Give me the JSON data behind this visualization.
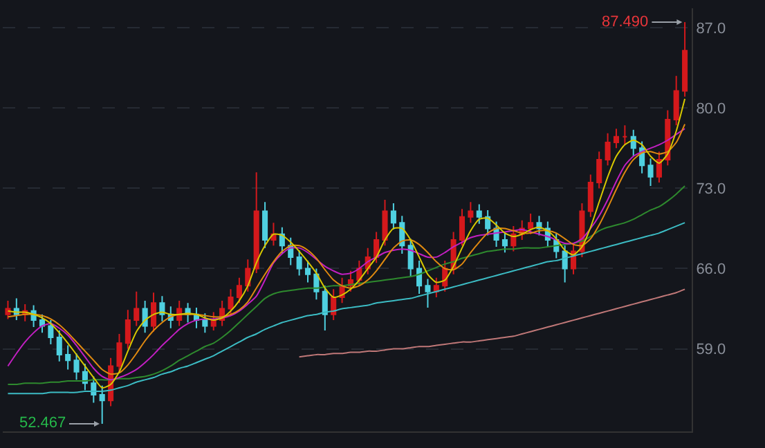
{
  "chart_data": {
    "type": "candlestick",
    "categories": [
      null,
      null,
      null,
      null,
      null,
      null,
      null,
      null,
      null,
      null,
      null,
      null,
      null,
      null,
      null,
      null,
      null,
      null,
      null,
      null,
      null,
      null,
      null,
      null,
      null,
      null,
      null,
      null,
      null,
      null,
      null,
      null,
      null,
      null,
      null,
      null,
      null,
      null,
      null,
      null,
      null,
      null,
      null,
      null,
      null,
      null,
      null,
      null,
      null,
      null,
      null,
      null,
      null,
      null,
      null,
      null,
      null,
      null,
      null,
      null,
      null,
      null,
      null,
      null,
      null,
      null,
      null,
      null,
      null,
      null,
      null,
      null,
      null,
      null,
      null,
      null,
      null,
      null,
      null,
      null
    ],
    "ylim": [
      51.8,
      88.7
    ],
    "yticks": [
      {
        "value": 59,
        "label": "59.0"
      },
      {
        "value": 66,
        "label": "66.0"
      },
      {
        "value": 73,
        "label": "73.0"
      },
      {
        "value": 80,
        "label": "80.0"
      },
      {
        "value": 87,
        "label": "87.0"
      }
    ],
    "grid": "y",
    "tick_labels": "y",
    "annotations": [
      "52.467",
      "87.490"
    ],
    "series": [
      {
        "colors": [
          "#d4191c",
          "#4fd0e0",
          "#d4191c",
          "#4fd0e0",
          "#4fd0e0",
          "#4fd0e0",
          "#4fd0e0",
          "#4fd0e0",
          "#4fd0e0",
          "#4fd0e0",
          "#4fd0e0",
          "#4fd0e0",
          "#d4191c",
          "#d4191c",
          "#d4191c",
          "#d4191c",
          "#4fd0e0",
          "#d4191c",
          "#4fd0e0",
          "#4fd0e0",
          "#d4191c",
          "#4fd0e0",
          "#4fd0e0",
          "#4fd0e0",
          "#d4191c",
          "#d4191c",
          "#d4191c",
          "#d4191c",
          "#d4191c",
          "#d4191c",
          "#4fd0e0",
          "#d4191c",
          "#4fd0e0",
          "#4fd0e0",
          "#4fd0e0",
          "#4fd0e0",
          "#4fd0e0",
          "#4fd0e0",
          "#d4191c",
          "#d4191c",
          "#d4191c",
          "#d4191c",
          "#d4191c",
          "#d4191c",
          "#d4191c",
          "#4fd0e0",
          "#4fd0e0",
          "#4fd0e0",
          "#4fd0e0",
          "#4fd0e0",
          "#d4191c",
          "#d4191c",
          "#d4191c",
          "#d4191c",
          "#d4191c",
          "#4fd0e0",
          "#4fd0e0",
          "#4fd0e0",
          "#4fd0e0",
          "#d4191c",
          "#d4191c",
          "#d4191c",
          "#4fd0e0",
          "#4fd0e0",
          "#4fd0e0",
          "#4fd0e0",
          "#d4191c",
          "#d4191c",
          "#d4191c",
          "#d4191c",
          "#d4191c",
          "#d4191c",
          "#d4191c",
          "#4fd0e0",
          "#4fd0e0",
          "#4fd0e0",
          "#d4191c",
          "#d4191c",
          "#d4191c",
          "#d4191c"
        ],
        "ohlc": [
          [
            62,
            63.2,
            61.6,
            62.5
          ],
          [
            62.5,
            63.4,
            61.5,
            62
          ],
          [
            62,
            62.9,
            61.4,
            62.3
          ],
          [
            62.3,
            62.8,
            60.9,
            61.5
          ],
          [
            61.5,
            62,
            60.4,
            61
          ],
          [
            61,
            61.5,
            59.4,
            60
          ],
          [
            60,
            60.6,
            57.9,
            58.5
          ],
          [
            58.5,
            59.3,
            57.2,
            58
          ],
          [
            58,
            58.6,
            56.3,
            57
          ],
          [
            57,
            57.7,
            55.4,
            56
          ],
          [
            56,
            56.6,
            54.3,
            55
          ],
          [
            55,
            55.8,
            52.467,
            54.5
          ],
          [
            54.5,
            58.2,
            54,
            57.5
          ],
          [
            57.5,
            60.3,
            57,
            59.5
          ],
          [
            59.5,
            62.4,
            59,
            61.5
          ],
          [
            61.5,
            64,
            61,
            62.5
          ],
          [
            62.5,
            63.2,
            60.4,
            61
          ],
          [
            61,
            63.9,
            60.5,
            63
          ],
          [
            63,
            63.6,
            61.4,
            62
          ],
          [
            62,
            62.7,
            60.8,
            61.5
          ],
          [
            61.5,
            63.2,
            61,
            62.5
          ],
          [
            62.5,
            63,
            61.3,
            62
          ],
          [
            62,
            62.6,
            60.8,
            61.5
          ],
          [
            61.5,
            62.1,
            60.4,
            61
          ],
          [
            61,
            62.2,
            60.6,
            61.5
          ],
          [
            61.5,
            63.2,
            61,
            62.5
          ],
          [
            62.5,
            64.2,
            62,
            63.5
          ],
          [
            63.5,
            65.2,
            63,
            64.5
          ],
          [
            64.5,
            66.8,
            64,
            66
          ],
          [
            66,
            74.4,
            65.6,
            71
          ],
          [
            71,
            71.8,
            67.8,
            68.5
          ],
          [
            68.5,
            70,
            68,
            69
          ],
          [
            69,
            69.6,
            67.3,
            68
          ],
          [
            68,
            68.7,
            66.3,
            67
          ],
          [
            67,
            67.6,
            65.4,
            66
          ],
          [
            66,
            66.7,
            64.8,
            65.5
          ],
          [
            65.5,
            66,
            63.3,
            64
          ],
          [
            64,
            64.5,
            60.6,
            62
          ],
          [
            62,
            64.2,
            61.5,
            63.5
          ],
          [
            63.5,
            65.2,
            63,
            64.5
          ],
          [
            64.5,
            65.8,
            64,
            65
          ],
          [
            65,
            66.7,
            64.5,
            66
          ],
          [
            66,
            67.8,
            65.5,
            67
          ],
          [
            67,
            69.2,
            66.5,
            68.5
          ],
          [
            68.5,
            72,
            68,
            71
          ],
          [
            71,
            71.7,
            69.4,
            70
          ],
          [
            70,
            70.6,
            67.3,
            68
          ],
          [
            68,
            68.6,
            65.3,
            66
          ],
          [
            66,
            66.7,
            63.8,
            64.5
          ],
          [
            64.5,
            65.1,
            62.6,
            64
          ],
          [
            64,
            65.2,
            63.5,
            64.5
          ],
          [
            64.5,
            66.7,
            64,
            66
          ],
          [
            66,
            69.2,
            65.5,
            68.5
          ],
          [
            68.5,
            71.2,
            68,
            70.5
          ],
          [
            70.5,
            71.8,
            70,
            71
          ],
          [
            71,
            71.6,
            69.9,
            70.5
          ],
          [
            70.5,
            71.1,
            68.9,
            69.5
          ],
          [
            69.5,
            70.1,
            67.9,
            68.5
          ],
          [
            68.5,
            69.1,
            67.4,
            68
          ],
          [
            68,
            69.7,
            67.5,
            69
          ],
          [
            69,
            70.2,
            68.5,
            69.5
          ],
          [
            69.5,
            70.8,
            69,
            70
          ],
          [
            70,
            70.6,
            68.9,
            69.5
          ],
          [
            69.5,
            70.1,
            67.9,
            68.5
          ],
          [
            68.5,
            69.1,
            66.9,
            67.5
          ],
          [
            67.5,
            68,
            64.8,
            66
          ],
          [
            66,
            68.2,
            65.5,
            67.5
          ],
          [
            67.5,
            71.7,
            67,
            71
          ],
          [
            71,
            74.2,
            70.5,
            73.5
          ],
          [
            73.5,
            76.2,
            73,
            75.5
          ],
          [
            75.5,
            77.8,
            75,
            77
          ],
          [
            77,
            78.2,
            76.5,
            77.5
          ],
          [
            77.5,
            78.5,
            76.8,
            77.5
          ],
          [
            77.5,
            78.1,
            75.8,
            76.5
          ],
          [
            76.5,
            77.1,
            74.3,
            75
          ],
          [
            75,
            75.6,
            73.2,
            74
          ],
          [
            74,
            76.2,
            73.5,
            75.5
          ],
          [
            75.5,
            79.8,
            75,
            79
          ],
          [
            79,
            82.8,
            78.5,
            81.5
          ],
          [
            81.5,
            87.49,
            81,
            85
          ]
        ]
      },
      {
        "type": "line",
        "color": "#d8c800",
        "values": [
          62.3,
          62.2,
          62.2,
          62,
          61.7,
          61.2,
          60.4,
          59.5,
          58.5,
          57.5,
          56.5,
          55.6,
          55.9,
          57,
          58.8,
          60.5,
          61.5,
          62,
          62.2,
          62,
          62,
          62.1,
          62,
          61.7,
          61.5,
          61.7,
          62.3,
          63.2,
          64.5,
          66.5,
          68,
          69,
          68.9,
          68.3,
          67.5,
          66.6,
          65.6,
          64.3,
          63.5,
          63.7,
          64.2,
          65,
          66,
          67,
          68.5,
          69.5,
          69.5,
          68.5,
          67,
          65.5,
          64.8,
          65,
          66.2,
          67.8,
          69.3,
          70.3,
          70.4,
          69.8,
          69.1,
          68.8,
          69,
          69.4,
          69.6,
          69.3,
          68.6,
          67.6,
          67.2,
          67.9,
          69.6,
          71.8,
          74,
          75.8,
          76.8,
          77.2,
          76.8,
          75.8,
          75.2,
          76,
          78,
          80.8
        ]
      },
      {
        "type": "line",
        "color": "#e08a10",
        "values": [
          61.8,
          61.9,
          62,
          62,
          61.9,
          61.6,
          61.1,
          60.4,
          59.6,
          58.8,
          58,
          57.2,
          56.8,
          56.9,
          57.6,
          58.6,
          59.7,
          60.6,
          61.3,
          61.8,
          62,
          62,
          62,
          61.9,
          61.8,
          61.8,
          62,
          62.4,
          63.1,
          64.3,
          65.5,
          66.6,
          67.5,
          68,
          68,
          67.6,
          66.9,
          65.9,
          65,
          64.5,
          64.3,
          64.5,
          65,
          65.8,
          66.8,
          67.8,
          68.4,
          68.5,
          68.1,
          67.4,
          66.6,
          66,
          65.9,
          66.4,
          67.4,
          68.3,
          69.1,
          69.5,
          69.5,
          69.3,
          69.1,
          69.1,
          69.3,
          69.3,
          69.1,
          68.6,
          68.1,
          68,
          68.6,
          69.8,
          71.3,
          72.9,
          74.4,
          75.5,
          76.1,
          76.2,
          76,
          76.2,
          77,
          78.6
        ]
      },
      {
        "type": "line",
        "color": "#c21fc2",
        "values": [
          57.5,
          58.6,
          59.6,
          60.4,
          61,
          61.2,
          60.8,
          60.2,
          59.3,
          58.3,
          57.3,
          56.6,
          56.3,
          56.5,
          56.8,
          57.2,
          57.8,
          58.5,
          59.3,
          60,
          60.7,
          61.2,
          61.5,
          61.6,
          61.6,
          61.7,
          61.9,
          62.3,
          62.9,
          63.6,
          65,
          66.5,
          67.3,
          67.8,
          67.8,
          67.4,
          66.8,
          66.2,
          65.8,
          65.5,
          65.6,
          66,
          66.6,
          67,
          67.4,
          67.6,
          67.7,
          67.6,
          67.3,
          67,
          67,
          67.4,
          67.9,
          68.3,
          68.7,
          68.9,
          69,
          69.1,
          69.2,
          69.3,
          69.4,
          69.2,
          69,
          68.8,
          68.5,
          68.2,
          68.2,
          68.6,
          69.5,
          70.6,
          72,
          73.6,
          75,
          75.8,
          76.2,
          76.5,
          76.8,
          77.2,
          77.7,
          78.2
        ]
      },
      {
        "type": "line",
        "color": "#2e8a2e",
        "values": [
          55.9,
          55.9,
          56,
          56,
          56,
          56.1,
          56.1,
          56.2,
          56.2,
          56.2,
          56.3,
          56.3,
          56.3,
          56.4,
          56.4,
          56.5,
          56.6,
          56.8,
          57.1,
          57.5,
          58,
          58.4,
          58.8,
          59.2,
          59.5,
          60,
          60.6,
          61.3,
          62,
          62.7,
          63.4,
          63.8,
          64,
          64.1,
          64.2,
          64.3,
          64.3,
          64.4,
          64.5,
          64.5,
          64.6,
          64.7,
          64.8,
          64.9,
          65,
          65.1,
          65.2,
          65.3,
          65.5,
          65.8,
          66.1,
          66.4,
          66.6,
          66.9,
          67.1,
          67.3,
          67.5,
          67.6,
          67.7,
          67.7,
          67.8,
          67.8,
          67.8,
          67.9,
          68,
          68.1,
          68.2,
          68.4,
          68.8,
          69.3,
          69.6,
          69.8,
          70,
          70.3,
          70.7,
          71.1,
          71.4,
          71.9,
          72.5,
          73.2
        ]
      },
      {
        "type": "line",
        "color": "#3cbcc4",
        "values": [
          55.1,
          55.1,
          55.1,
          55.1,
          55.1,
          55.2,
          55.2,
          55.2,
          55.2,
          55.3,
          55.3,
          55.3,
          55.4,
          55.6,
          55.8,
          56.1,
          56.3,
          56.5,
          56.8,
          57,
          57.3,
          57.5,
          57.8,
          58.1,
          58.4,
          58.8,
          59.2,
          59.6,
          60,
          60.3,
          60.7,
          61,
          61.3,
          61.5,
          61.7,
          61.9,
          62,
          62.2,
          62.3,
          62.5,
          62.6,
          62.7,
          62.8,
          63,
          63.1,
          63.2,
          63.3,
          63.4,
          63.6,
          63.8,
          64,
          64.2,
          64.4,
          64.6,
          64.8,
          65,
          65.2,
          65.4,
          65.6,
          65.8,
          66,
          66.2,
          66.4,
          66.6,
          66.7,
          66.9,
          67.1,
          67.3,
          67.5,
          67.7,
          67.9,
          68.1,
          68.3,
          68.5,
          68.7,
          68.9,
          69.1,
          69.4,
          69.7,
          70
        ]
      },
      {
        "type": "line",
        "color": "#c07878",
        "values": [
          null,
          null,
          null,
          null,
          null,
          null,
          null,
          null,
          null,
          null,
          null,
          null,
          null,
          null,
          null,
          null,
          null,
          null,
          null,
          null,
          null,
          null,
          null,
          null,
          null,
          null,
          null,
          null,
          null,
          null,
          null,
          null,
          null,
          null,
          58.3,
          58.4,
          58.5,
          58.5,
          58.6,
          58.6,
          58.7,
          58.7,
          58.8,
          58.8,
          58.9,
          59,
          59,
          59.1,
          59.2,
          59.2,
          59.3,
          59.4,
          59.5,
          59.6,
          59.6,
          59.7,
          59.8,
          59.9,
          60,
          60.1,
          60.3,
          60.5,
          60.7,
          60.9,
          61.1,
          61.3,
          61.5,
          61.7,
          61.9,
          62.1,
          62.3,
          62.5,
          62.7,
          62.9,
          63.1,
          63.3,
          63.5,
          63.7,
          63.9,
          64.2
        ]
      }
    ]
  }
}
